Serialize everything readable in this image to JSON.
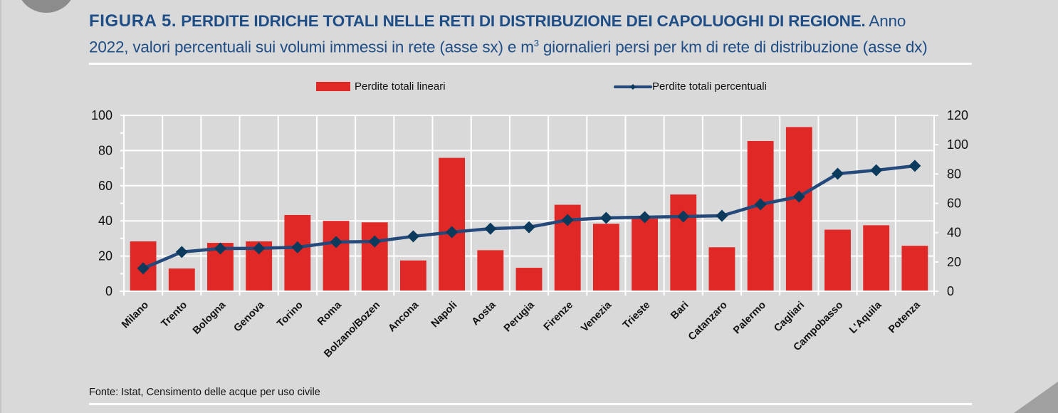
{
  "title": {
    "figure_label": "FIGURA 5.",
    "main": "PERDITE IDRICHE TOTALI NELLE RETI DI DISTRIBUZIONE DEI CAPOLUOGHI DI REGIONE.",
    "line1_tail": "Anno",
    "line2_before_sup": "2022, valori percentuali sui volumi immessi in rete (asse sx) e m",
    "sup": "3",
    "line2_after_sup": " giornalieri persi per km di rete di distribuzione (asse dx)"
  },
  "source": "Fonte: Istat, Censimento delle acque per uso civile",
  "colors": {
    "bar": "#e02826",
    "line": "#24497a",
    "marker": "#0b3a5c",
    "title": "#1f4e86"
  },
  "chart_data": {
    "type": "bar+line",
    "categories": [
      "Milano",
      "Trento",
      "Bologna",
      "Genova",
      "Torino",
      "Roma",
      "Bolzano/Bozen",
      "Ancona",
      "Napoli",
      "Aosta",
      "Perugia",
      "Firenze",
      "Venezia",
      "Trieste",
      "Bari",
      "Catanzaro",
      "Palermo",
      "Cagliari",
      "Campobasso",
      "L'Aquila",
      "Potenza"
    ],
    "series": [
      {
        "name": "Perdite totali lineari",
        "type": "bar",
        "axis": "right",
        "values": [
          34,
          15.5,
          33,
          34,
          52,
          48,
          47,
          21,
          91,
          28,
          16,
          59,
          46,
          49.5,
          66,
          30,
          102.5,
          112,
          42,
          45,
          31
        ]
      },
      {
        "name": "Perdite totali percentuali",
        "type": "line",
        "axis": "left",
        "values": [
          13,
          22.3,
          24.3,
          24.4,
          25,
          28,
          28.3,
          31.2,
          33.6,
          35.6,
          36.4,
          40.5,
          41.7,
          42.1,
          42.5,
          42.9,
          49.4,
          53.8,
          66.8,
          68.8,
          71.3
        ]
      }
    ],
    "left_axis": {
      "range": [
        0,
        100
      ],
      "ticks": [
        "0",
        "20",
        "40",
        "60",
        "80",
        "100"
      ],
      "tick_values": [
        0,
        20,
        40,
        60,
        80,
        100
      ]
    },
    "right_axis": {
      "range": [
        0,
        120
      ],
      "ticks": [
        "0",
        "20",
        "40",
        "60",
        "80",
        "100",
        "120"
      ],
      "tick_values": [
        0,
        20,
        40,
        60,
        80,
        100,
        120
      ]
    },
    "grid": true,
    "legend": [
      "Perdite totali lineari",
      "Perdite totali percentuali"
    ],
    "legend_position": "top"
  }
}
